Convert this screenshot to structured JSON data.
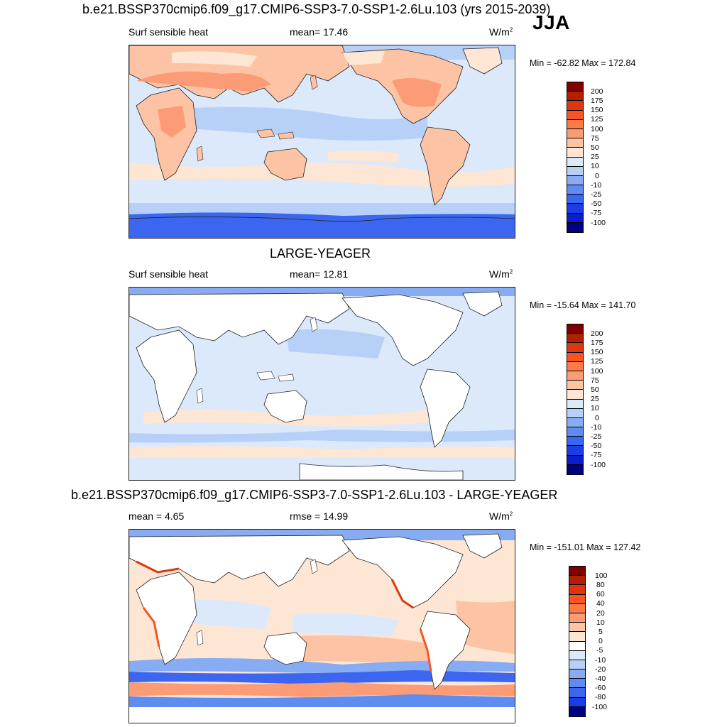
{
  "header": {
    "title": "b.e21.BSSP370cmip6.f09_g17.CMIP6-SSP3-7.0-SSP1-2.6Lu.103 (yrs 2015-2039)",
    "season": "JJA"
  },
  "panels": [
    {
      "id": "model",
      "section_title": "",
      "left_label": "Surf sensible heat",
      "center_label": "mean=  17.46",
      "units": "W/m",
      "units_sup": "2",
      "minmax": "Min = -62.82 Max = 172.84",
      "colorbar": {
        "labels": [
          "200",
          "175",
          "150",
          "125",
          "100",
          "75",
          "50",
          "25",
          "10",
          "0",
          "-10",
          "-25",
          "-50",
          "-75",
          "-100"
        ],
        "colors": [
          "#7f0000",
          "#b22000",
          "#dc3810",
          "#fa5420",
          "#fc7a48",
          "#fc9c76",
          "#fcc4a4",
          "#fee6d4",
          "#dbe9fb",
          "#b6d0f8",
          "#88acf4",
          "#5e8cf0",
          "#3c66f0",
          "#1c3ce6",
          "#0c1ecc",
          "#000080"
        ]
      }
    },
    {
      "id": "obs",
      "section_title": "LARGE-YEAGER",
      "left_label": "Surf sensible heat",
      "center_label": "mean=  12.81",
      "units": "W/m",
      "units_sup": "2",
      "minmax": "Min = -15.64 Max = 141.70",
      "colorbar": {
        "labels": [
          "200",
          "175",
          "150",
          "125",
          "100",
          "75",
          "50",
          "25",
          "10",
          "0",
          "-10",
          "-25",
          "-50",
          "-75",
          "-100"
        ],
        "colors": [
          "#7f0000",
          "#b22000",
          "#dc3810",
          "#fa5420",
          "#fc7a48",
          "#fc9c76",
          "#fcc4a4",
          "#fee6d4",
          "#dbe9fb",
          "#b6d0f8",
          "#88acf4",
          "#5e8cf0",
          "#3c66f0",
          "#1c3ce6",
          "#0c1ecc",
          "#000080"
        ]
      }
    },
    {
      "id": "diff",
      "section_title": "b.e21.BSSP370cmip6.f09_g17.CMIP6-SSP3-7.0-SSP1-2.6Lu.103 - LARGE-YEAGER",
      "left_label": "mean =   4.65",
      "center_label": "rmse =  14.99",
      "units": "W/m",
      "units_sup": "2",
      "minmax": "Min = -151.01 Max = 127.42",
      "colorbar": {
        "labels": [
          "100",
          "80",
          "60",
          "40",
          "20",
          "10",
          "5",
          "0",
          "-5",
          "-10",
          "-20",
          "-40",
          "-60",
          "-80",
          "-100"
        ],
        "colors": [
          "#7f0000",
          "#b22000",
          "#dc3810",
          "#fa5420",
          "#fc7a48",
          "#fc9c76",
          "#fcc4a4",
          "#fee6d4",
          "#ffffff",
          "#dbe9fb",
          "#b6d0f8",
          "#88acf4",
          "#5e8cf0",
          "#3c66f0",
          "#1c3ce6",
          "#000080"
        ]
      }
    }
  ]
}
